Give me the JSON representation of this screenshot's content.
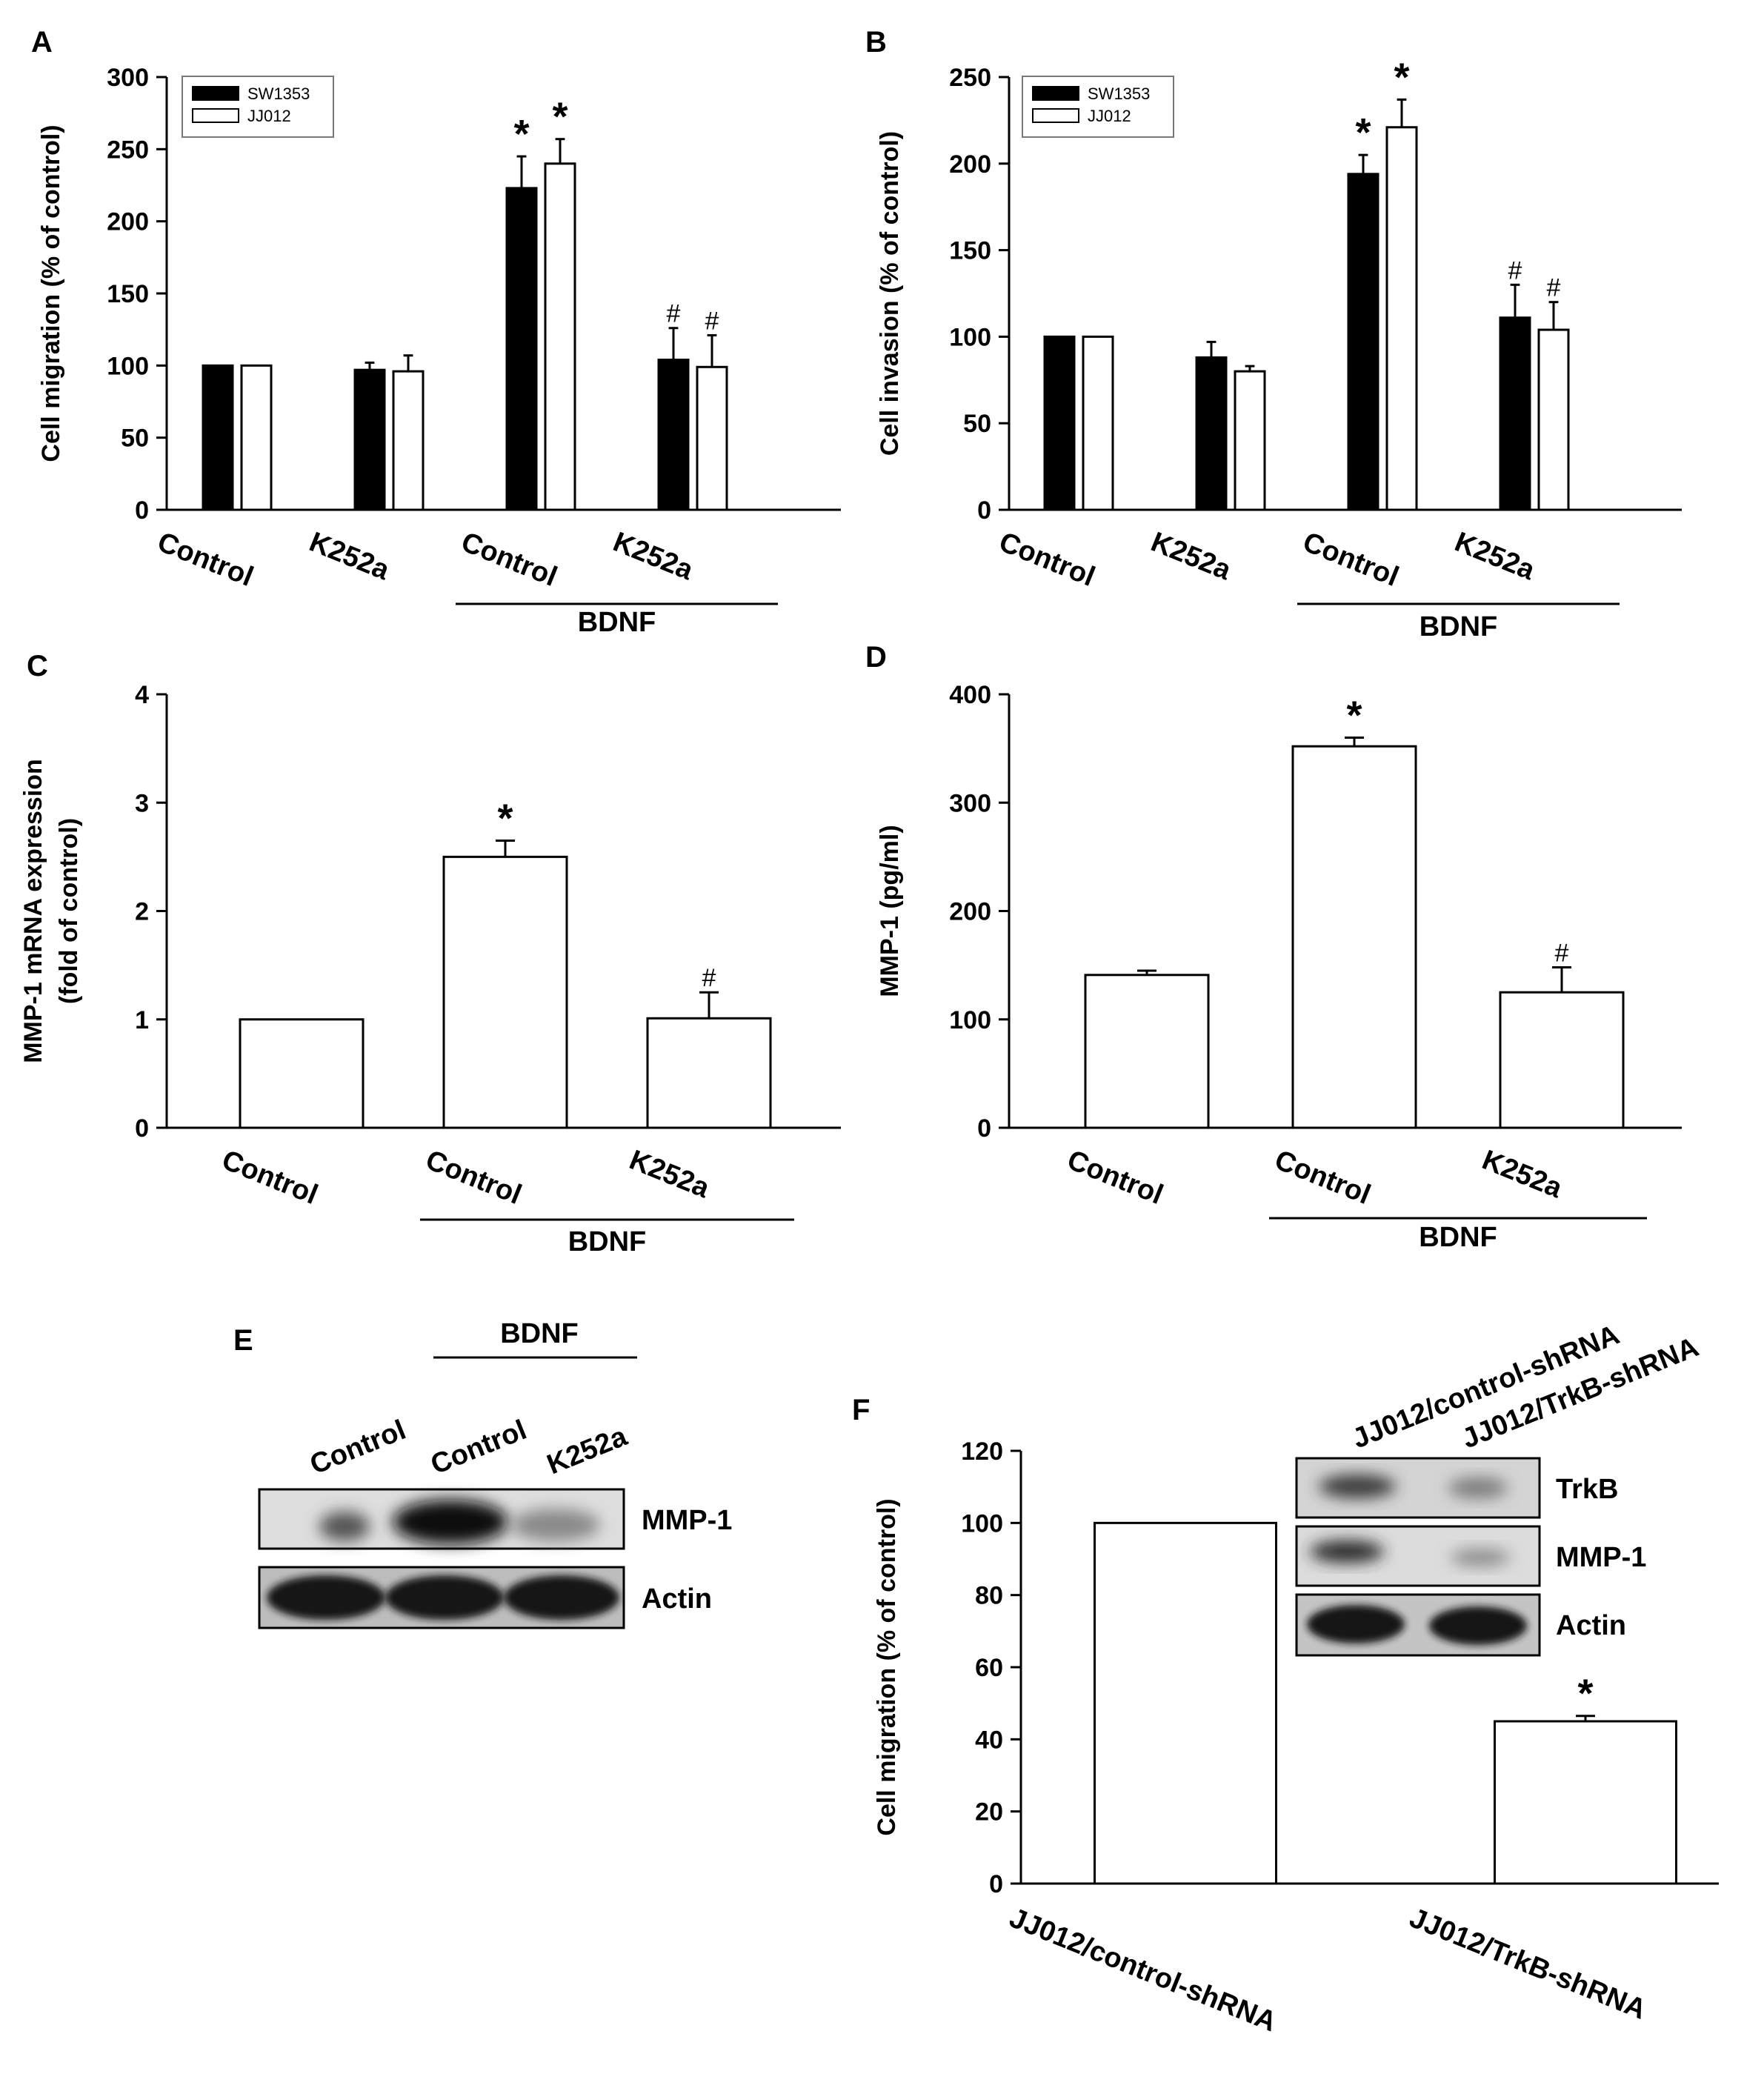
{
  "chart_data": [
    {
      "panel": "A",
      "type": "bar",
      "ylabel": "Cell migration (% of control)",
      "ylim": [
        0,
        300
      ],
      "yticks": [
        0,
        50,
        100,
        150,
        200,
        250,
        300
      ],
      "categories": [
        "Control",
        "K252a",
        "Control",
        "K252a"
      ],
      "group_label": "BDNF",
      "legend": "top-left",
      "series": [
        {
          "name": "SW1353",
          "color": "#000000",
          "values": [
            100,
            97,
            223,
            104
          ],
          "errors": [
            0,
            5,
            22,
            22
          ]
        },
        {
          "name": "JJ012",
          "color": "#ffffff",
          "values": [
            100,
            96,
            240,
            99
          ],
          "errors": [
            0,
            11,
            17,
            22
          ]
        }
      ],
      "annotations": [
        {
          "series": 0,
          "index": 2,
          "text": "*",
          "kind": "star"
        },
        {
          "series": 1,
          "index": 2,
          "text": "*",
          "kind": "star"
        },
        {
          "series": 0,
          "index": 3,
          "text": "#",
          "kind": "hash"
        },
        {
          "series": 1,
          "index": 3,
          "text": "#",
          "kind": "hash"
        }
      ]
    },
    {
      "panel": "B",
      "type": "bar",
      "ylabel": "Cell invasion (% of control)",
      "ylim": [
        0,
        250
      ],
      "yticks": [
        0,
        50,
        100,
        150,
        200,
        250
      ],
      "categories": [
        "Control",
        "K252a",
        "Control",
        "K252a"
      ],
      "group_label": "BDNF",
      "legend": "top-left",
      "series": [
        {
          "name": "SW1353",
          "color": "#000000",
          "values": [
            100,
            88,
            194,
            111
          ],
          "errors": [
            0,
            9,
            11,
            19
          ]
        },
        {
          "name": "JJ012",
          "color": "#ffffff",
          "values": [
            100,
            80,
            221,
            104
          ],
          "errors": [
            0,
            3,
            16,
            16
          ]
        }
      ],
      "annotations": [
        {
          "series": 0,
          "index": 2,
          "text": "*",
          "kind": "star"
        },
        {
          "series": 1,
          "index": 2,
          "text": "*",
          "kind": "star"
        },
        {
          "series": 0,
          "index": 3,
          "text": "#",
          "kind": "hash"
        },
        {
          "series": 1,
          "index": 3,
          "text": "#",
          "kind": "hash"
        }
      ]
    },
    {
      "panel": "C",
      "type": "bar",
      "ylabel_lines": [
        "MMP-1 mRNA expression",
        "(fold of control)"
      ],
      "ylim": [
        0,
        4
      ],
      "yticks": [
        0,
        1,
        2,
        3,
        4
      ],
      "categories": [
        "Control",
        "Control",
        "K252a"
      ],
      "group_label": "BDNF",
      "series": [
        {
          "name": "",
          "color": "#ffffff",
          "values": [
            1.0,
            2.5,
            1.01
          ],
          "errors": [
            0,
            0.15,
            0.24
          ]
        }
      ],
      "annotations": [
        {
          "series": 0,
          "index": 1,
          "text": "*",
          "kind": "star"
        },
        {
          "series": 0,
          "index": 2,
          "text": "#",
          "kind": "hash"
        }
      ]
    },
    {
      "panel": "D",
      "type": "bar",
      "ylabel": "MMP-1 (pg/ml)",
      "ylim": [
        0,
        400
      ],
      "yticks": [
        0,
        100,
        200,
        300,
        400
      ],
      "categories": [
        "Control",
        "Control",
        "K252a"
      ],
      "group_label": "BDNF",
      "series": [
        {
          "name": "",
          "color": "#ffffff",
          "values": [
            141,
            352,
            125
          ],
          "errors": [
            4,
            8,
            23
          ]
        }
      ],
      "annotations": [
        {
          "series": 0,
          "index": 1,
          "text": "*",
          "kind": "star"
        },
        {
          "series": 0,
          "index": 2,
          "text": "#",
          "kind": "hash"
        }
      ]
    },
    {
      "panel": "F",
      "type": "bar",
      "ylabel": "Cell migration (% of control)",
      "ylim": [
        0,
        120
      ],
      "yticks": [
        0,
        20,
        40,
        60,
        80,
        100,
        120
      ],
      "categories": [
        "JJ012/control-shRNA",
        "JJ012/TrkB-shRNA"
      ],
      "series": [
        {
          "name": "",
          "color": "#ffffff",
          "values": [
            100,
            45
          ],
          "errors": [
            0,
            1.5
          ]
        }
      ],
      "annotations": [
        {
          "series": 0,
          "index": 1,
          "text": "*",
          "kind": "star"
        }
      ]
    }
  ],
  "blot_E": {
    "panel": "E",
    "group_label": "BDNF",
    "lanes": [
      "Control",
      "Control",
      "K252a"
    ],
    "rows": [
      "MMP-1",
      "Actin"
    ]
  },
  "blot_F": {
    "lanes": [
      "JJ012/control-shRNA",
      "JJ012/TrkB-shRNA"
    ],
    "rows": [
      "TrkB",
      "MMP-1",
      "Actin"
    ]
  }
}
